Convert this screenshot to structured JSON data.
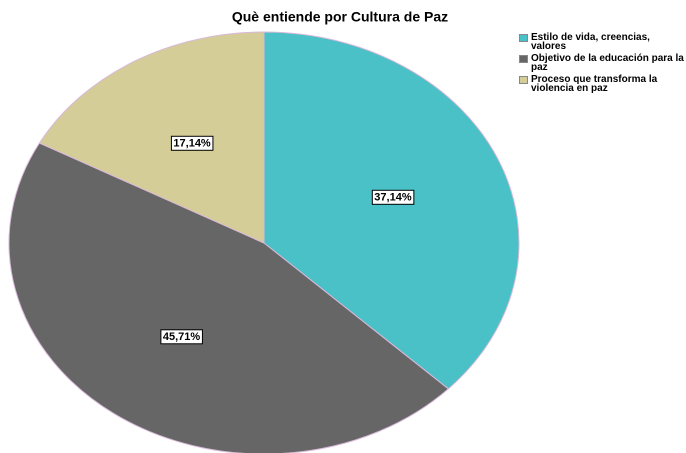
{
  "chart_data": {
    "type": "pie",
    "title": "Què entiende por Cultura de Paz",
    "categories": [
      "Estilo de vida, creencias, valores",
      "Objetivo de la educación para la paz",
      "Proceso que transforma la violencia en paz"
    ],
    "values": [
      37.14,
      45.71,
      17.14
    ],
    "value_labels": [
      "37,14%",
      "45,71%",
      "17,14%"
    ],
    "colors": [
      "#49c1c6",
      "#666666",
      "#d4cd98"
    ],
    "legend": "right"
  }
}
